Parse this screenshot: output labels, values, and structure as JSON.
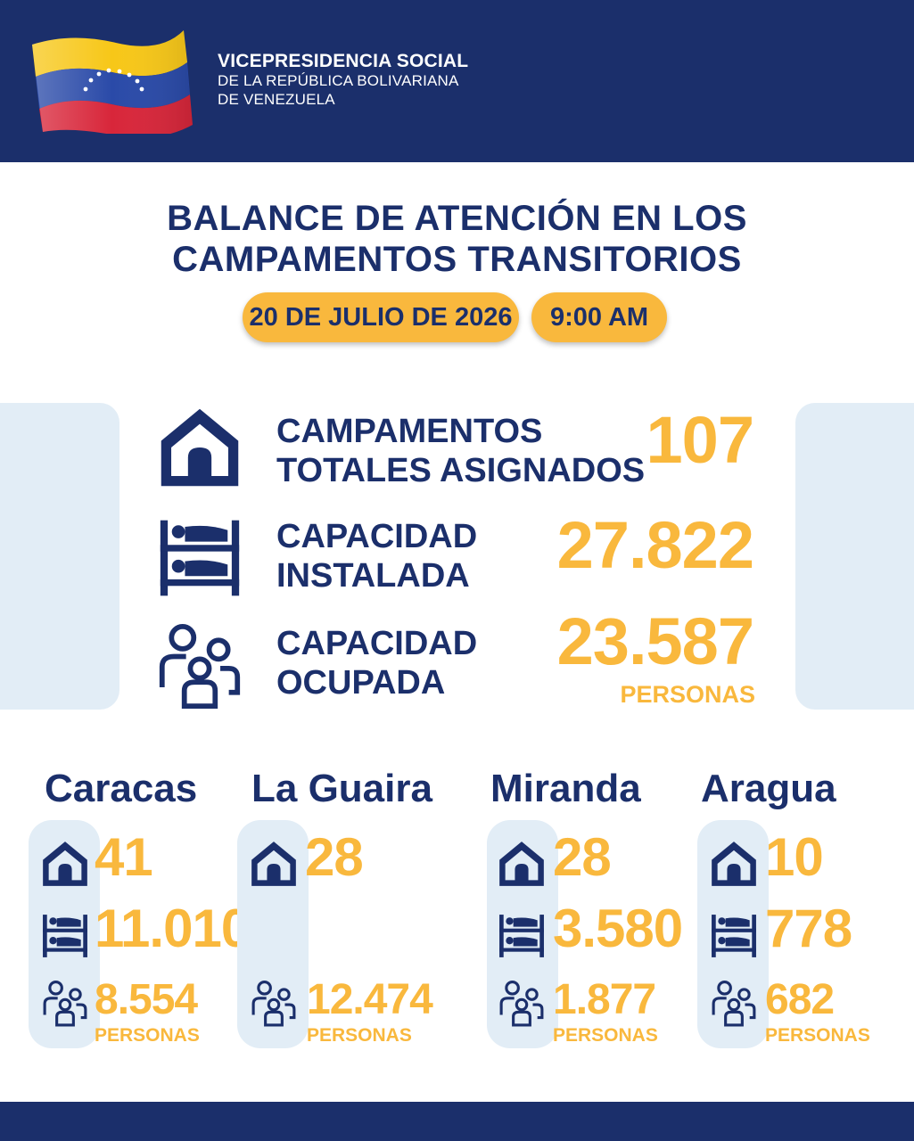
{
  "header": {
    "org_line1": "VICEPRESIDENCIA SOCIAL",
    "org_line2": "DE LA REPÚBLICA BOLIVARIANA",
    "org_line3": "DE VENEZUELA"
  },
  "title": {
    "line1": "BALANCE DE ATENCIÓN EN LOS",
    "line2": "CAMPAMENTOS TRANSITORIOS"
  },
  "date": "20 DE JULIO DE 2026",
  "time": "9:00 AM",
  "summary": {
    "camps": {
      "label_l1": "CAMPAMENTOS",
      "label_l2": "TOTALES ASIGNADOS",
      "value": "107",
      "icon": "house-icon"
    },
    "installed": {
      "label_l1": "CAPACIDAD",
      "label_l2": "INSTALADA",
      "value": "27.822",
      "icon": "bunk-bed-icon"
    },
    "occupied": {
      "label_l1": "CAPACIDAD",
      "label_l2": "OCUPADA",
      "value": "23.587",
      "unit": "PERSONAS",
      "icon": "people-icon"
    }
  },
  "regions": [
    {
      "name": "Caracas",
      "camps": "41",
      "capacity": "11.010",
      "people": "8.554",
      "unit": "PERSONAS"
    },
    {
      "name": "La Guaira",
      "camps": "28",
      "capacity": "",
      "people": "12.474",
      "unit": "PERSONAS"
    },
    {
      "name": "Miranda",
      "camps": "28",
      "capacity": "3.580",
      "people": "1.877",
      "unit": "PERSONAS"
    },
    {
      "name": "Aragua",
      "camps": "10",
      "capacity": "778",
      "people": "682",
      "unit": "PERSONAS"
    }
  ],
  "colors": {
    "navy": "#1b2f6b",
    "gold": "#f9b83d",
    "panel": "#e2edf6"
  }
}
